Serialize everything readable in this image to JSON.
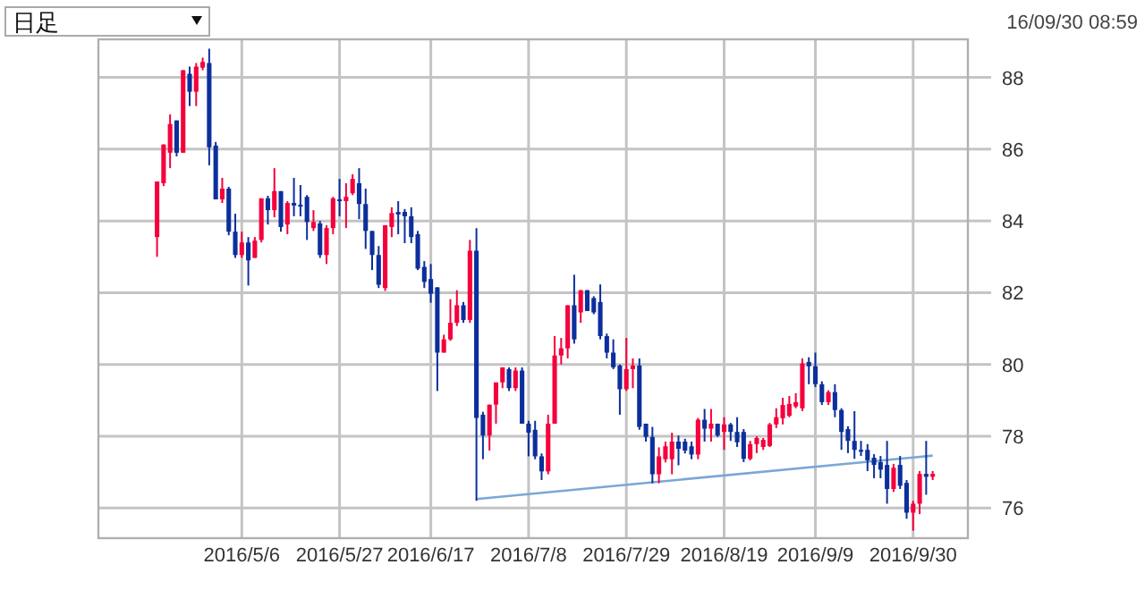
{
  "chart_data": {
    "type": "candlestick",
    "categories": [
      null,
      null,
      null,
      null,
      null,
      null,
      null,
      null,
      null,
      null,
      null,
      null,
      null,
      "2016/5/6",
      null,
      null,
      null,
      null,
      null,
      null,
      null,
      null,
      null,
      null,
      null,
      null,
      null,
      null,
      "2016/5/27",
      null,
      null,
      null,
      null,
      null,
      null,
      null,
      null,
      null,
      null,
      null,
      null,
      null,
      "2016/6/17",
      null,
      null,
      null,
      null,
      null,
      null,
      null,
      null,
      null,
      null,
      null,
      null,
      null,
      null,
      "2016/7/8",
      null,
      null,
      null,
      null,
      null,
      null,
      null,
      null,
      null,
      null,
      null,
      null,
      null,
      null,
      "2016/7/29",
      null,
      null,
      null,
      null,
      null,
      null,
      null,
      null,
      null,
      null,
      null,
      null,
      null,
      null,
      "2016/8/19",
      null,
      null,
      null,
      null,
      null,
      null,
      null,
      null,
      null,
      null,
      null,
      null,
      null,
      "2016/9/9",
      null,
      null,
      null,
      null,
      null,
      null,
      null,
      null,
      null,
      null,
      null,
      null,
      null,
      null,
      "2016/9/30",
      null,
      null,
      null
    ],
    "ohlc": [
      [
        83.55,
        85.1,
        83.0,
        85.1
      ],
      [
        85.05,
        86.13,
        84.97,
        86.13
      ],
      [
        85.9,
        86.97,
        85.47,
        86.7
      ],
      [
        86.8,
        86.8,
        85.8,
        85.9
      ],
      [
        85.9,
        88.2,
        85.9,
        88.2
      ],
      [
        88.1,
        88.3,
        87.2,
        87.6
      ],
      [
        87.6,
        88.4,
        87.2,
        88.3
      ],
      [
        88.27,
        88.55,
        88.2,
        88.43
      ],
      [
        88.4,
        88.8,
        85.55,
        86.05
      ],
      [
        86.1,
        86.2,
        84.6,
        84.6
      ],
      [
        84.6,
        85.2,
        84.5,
        84.9
      ],
      [
        84.9,
        84.95,
        83.6,
        83.7
      ],
      [
        83.7,
        84.2,
        82.97,
        83.05
      ],
      [
        83.05,
        83.7,
        82.97,
        83.4
      ],
      [
        83.4,
        83.55,
        82.2,
        82.9
      ],
      [
        82.97,
        83.55,
        82.97,
        83.45
      ],
      [
        83.47,
        84.63,
        83.4,
        84.63
      ],
      [
        84.63,
        84.7,
        83.9,
        84.3
      ],
      [
        84.3,
        85.47,
        84.1,
        84.83
      ],
      [
        84.83,
        84.83,
        83.7,
        83.83
      ],
      [
        83.9,
        84.55,
        83.63,
        84.5
      ],
      [
        84.5,
        85.2,
        84.13,
        84.43
      ],
      [
        84.45,
        85.0,
        84.13,
        84.4
      ],
      [
        84.67,
        84.72,
        83.47,
        83.97
      ],
      [
        83.8,
        84.3,
        83.72,
        83.97
      ],
      [
        83.93,
        84.0,
        82.97,
        83.05
      ],
      [
        83.05,
        83.88,
        82.8,
        83.8
      ],
      [
        83.8,
        84.67,
        83.63,
        84.63
      ],
      [
        84.6,
        85.17,
        84.13,
        84.55
      ],
      [
        84.55,
        85.05,
        83.8,
        84.67
      ],
      [
        84.77,
        85.3,
        84.72,
        85.17
      ],
      [
        85.05,
        85.47,
        84.05,
        84.47
      ],
      [
        84.47,
        84.9,
        83.22,
        83.72
      ],
      [
        83.72,
        83.72,
        82.63,
        83.05
      ],
      [
        83.05,
        83.3,
        82.13,
        82.22
      ],
      [
        82.13,
        83.88,
        82.05,
        83.88
      ],
      [
        83.83,
        84.38,
        83.55,
        84.22
      ],
      [
        84.25,
        84.55,
        83.63,
        84.18
      ],
      [
        84.25,
        84.33,
        83.38,
        84.13
      ],
      [
        84.13,
        84.38,
        83.38,
        83.55
      ],
      [
        83.63,
        83.72,
        82.63,
        82.67
      ],
      [
        82.72,
        82.88,
        82.13,
        82.3
      ],
      [
        82.38,
        82.8,
        81.72,
        81.97
      ],
      [
        82.15,
        82.15,
        79.26,
        80.33
      ],
      [
        80.33,
        80.83,
        80.33,
        80.7
      ],
      [
        80.7,
        81.82,
        80.66,
        81.16
      ],
      [
        81.16,
        82.07,
        81.07,
        81.65
      ],
      [
        81.65,
        81.74,
        81.16,
        81.24
      ],
      [
        81.24,
        83.47,
        81.16,
        83.17
      ],
      [
        83.17,
        83.8,
        76.2,
        78.51
      ],
      [
        78.6,
        78.68,
        77.36,
        78.02
      ],
      [
        78.02,
        78.88,
        77.6,
        78.88
      ],
      [
        78.88,
        79.5,
        78.35,
        79.5
      ],
      [
        79.5,
        79.92,
        79.34,
        79.92
      ],
      [
        79.87,
        79.92,
        79.26,
        79.34
      ],
      [
        79.34,
        79.92,
        79.26,
        79.83
      ],
      [
        79.83,
        79.92,
        78.35,
        78.35
      ],
      [
        78.35,
        78.43,
        77.44,
        78.1
      ],
      [
        78.18,
        78.43,
        77.36,
        77.44
      ],
      [
        77.44,
        77.52,
        76.78,
        77.02
      ],
      [
        77.02,
        78.6,
        76.94,
        78.35
      ],
      [
        78.35,
        80.79,
        78.35,
        80.25
      ],
      [
        80.25,
        80.74,
        80.0,
        80.45
      ],
      [
        80.45,
        81.65,
        80.17,
        81.65
      ],
      [
        81.65,
        82.5,
        80.58,
        80.7
      ],
      [
        81.45,
        82.07,
        81.16,
        82.07
      ],
      [
        82.07,
        82.07,
        81.49,
        81.49
      ],
      [
        81.85,
        81.9,
        81.4,
        81.45
      ],
      [
        81.74,
        82.23,
        80.7,
        80.79
      ],
      [
        80.79,
        80.86,
        80.17,
        80.33
      ],
      [
        80.33,
        80.7,
        79.87,
        79.92
      ],
      [
        79.97,
        80.0,
        78.6,
        79.31
      ],
      [
        79.31,
        80.74,
        79.26,
        79.87
      ],
      [
        79.87,
        80.17,
        79.34,
        79.97
      ],
      [
        79.97,
        80.17,
        78.18,
        78.26
      ],
      [
        78.35,
        78.35,
        77.85,
        77.98
      ],
      [
        77.98,
        78.26,
        76.69,
        76.94
      ],
      [
        76.94,
        77.69,
        76.69,
        77.44
      ],
      [
        77.36,
        77.85,
        77.27,
        77.72
      ],
      [
        77.36,
        78.1,
        76.94,
        77.85
      ],
      [
        77.85,
        78.02,
        77.19,
        77.65
      ],
      [
        77.85,
        77.93,
        77.52,
        77.6
      ],
      [
        77.72,
        77.85,
        77.36,
        77.49
      ],
      [
        77.49,
        78.51,
        77.36,
        78.46
      ],
      [
        78.46,
        78.76,
        77.85,
        78.21
      ],
      [
        78.21,
        78.76,
        77.85,
        78.35
      ],
      [
        78.35,
        78.35,
        77.98,
        78.02
      ],
      [
        78.12,
        78.53,
        77.62,
        78.33
      ],
      [
        78.33,
        78.37,
        77.87,
        78.12
      ],
      [
        78.12,
        78.53,
        77.7,
        77.83
      ],
      [
        78.12,
        78.2,
        77.28,
        77.37
      ],
      [
        77.37,
        77.87,
        77.33,
        77.78
      ],
      [
        77.78,
        78.0,
        77.53,
        77.95
      ],
      [
        77.7,
        77.95,
        77.62,
        77.9
      ],
      [
        77.73,
        78.37,
        77.7,
        78.33
      ],
      [
        78.33,
        78.78,
        78.23,
        78.53
      ],
      [
        78.5,
        79.07,
        78.33,
        78.87
      ],
      [
        78.57,
        79.12,
        78.53,
        78.9
      ],
      [
        78.83,
        79.2,
        78.78,
        78.95
      ],
      [
        78.78,
        80.17,
        78.7,
        80.03
      ],
      [
        80.07,
        80.2,
        79.45,
        79.95
      ],
      [
        79.95,
        80.33,
        79.37,
        79.45
      ],
      [
        79.45,
        79.53,
        78.87,
        78.95
      ],
      [
        78.95,
        79.28,
        78.87,
        79.23
      ],
      [
        79.23,
        79.45,
        78.53,
        78.73
      ],
      [
        78.73,
        78.78,
        77.62,
        78.12
      ],
      [
        78.2,
        78.28,
        77.53,
        77.87
      ],
      [
        77.87,
        78.7,
        77.37,
        77.62
      ],
      [
        77.62,
        77.87,
        77.45,
        77.57
      ],
      [
        77.62,
        77.78,
        77.03,
        77.33
      ],
      [
        77.4,
        77.5,
        76.83,
        77.2
      ],
      [
        77.28,
        77.45,
        76.83,
        77.07
      ],
      [
        77.2,
        77.87,
        76.12,
        76.53
      ],
      [
        76.53,
        77.23,
        76.45,
        77.12
      ],
      [
        77.2,
        77.45,
        76.53,
        76.62
      ],
      [
        76.7,
        76.78,
        75.7,
        75.87
      ],
      [
        75.87,
        76.2,
        75.37,
        76.12
      ],
      [
        76.12,
        77.03,
        75.83,
        76.95
      ],
      [
        76.95,
        77.87,
        76.37,
        76.87
      ],
      [
        76.87,
        77.03,
        76.78,
        76.95
      ]
    ],
    "colors": [
      "#f5003c",
      "#f5003c",
      "#f5003c",
      "#0c2f9c",
      "#f5003c",
      "#0c2f9c",
      "#f5003c",
      "#f5003c",
      "#0c2f9c",
      "#0c2f9c",
      "#f5003c",
      "#0c2f9c",
      "#0c2f9c",
      "#f5003c",
      "#0c2f9c",
      "#f5003c",
      "#f5003c",
      "#0c2f9c",
      "#f5003c",
      "#0c2f9c",
      "#f5003c",
      "#0c2f9c",
      "#0c2f9c",
      "#0c2f9c",
      "#f5003c",
      "#0c2f9c",
      "#f5003c",
      "#f5003c",
      "#0c2f9c",
      "#f5003c",
      "#f5003c",
      "#0c2f9c",
      "#0c2f9c",
      "#0c2f9c",
      "#0c2f9c",
      "#f5003c",
      "#f5003c",
      "#0c2f9c",
      "#0c2f9c",
      "#0c2f9c",
      "#0c2f9c",
      "#0c2f9c",
      "#0c2f9c",
      "#0c2f9c",
      "#f5003c",
      "#f5003c",
      "#f5003c",
      "#0c2f9c",
      "#f5003c",
      "#0c2f9c",
      "#0c2f9c",
      "#f5003c",
      "#f5003c",
      "#f5003c",
      "#0c2f9c",
      "#f5003c",
      "#0c2f9c",
      "#0c2f9c",
      "#0c2f9c",
      "#0c2f9c",
      "#f5003c",
      "#f5003c",
      "#f5003c",
      "#f5003c",
      "#0c2f9c",
      "#f5003c",
      "#0c2f9c",
      "#0c2f9c",
      "#0c2f9c",
      "#0c2f9c",
      "#0c2f9c",
      "#0c2f9c",
      "#f5003c",
      "#f5003c",
      "#0c2f9c",
      "#0c2f9c",
      "#0c2f9c",
      "#f5003c",
      "#f5003c",
      "#f5003c",
      "#0c2f9c",
      "#0c2f9c",
      "#0c2f9c",
      "#f5003c",
      "#0c2f9c",
      "#f5003c",
      "#0c2f9c",
      "#f5003c",
      "#0c2f9c",
      "#0c2f9c",
      "#0c2f9c",
      "#f5003c",
      "#f5003c",
      "#f5003c",
      "#f5003c",
      "#f5003c",
      "#f5003c",
      "#f5003c",
      "#f5003c",
      "#f5003c",
      "#0c2f9c",
      "#0c2f9c",
      "#0c2f9c",
      "#f5003c",
      "#0c2f9c",
      "#0c2f9c",
      "#0c2f9c",
      "#0c2f9c",
      "#0c2f9c",
      "#0c2f9c",
      "#0c2f9c",
      "#0c2f9c",
      "#0c2f9c",
      "#f5003c",
      "#0c2f9c",
      "#0c2f9c",
      "#f5003c",
      "#f5003c",
      "#0c2f9c",
      "#f5003c"
    ],
    "series": [
      {
        "type": "line",
        "color": "#7ba7d6",
        "values": [
          null,
          null,
          null,
          null,
          null,
          null,
          null,
          null,
          null,
          null,
          null,
          null,
          null,
          null,
          null,
          null,
          null,
          null,
          null,
          null,
          null,
          null,
          null,
          null,
          null,
          null,
          null,
          null,
          null,
          null,
          null,
          null,
          null,
          null,
          null,
          null,
          null,
          null,
          null,
          null,
          null,
          null,
          null,
          null,
          null,
          null,
          null,
          null,
          null,
          76.25,
          null,
          null,
          null,
          null,
          null,
          null,
          null,
          null,
          null,
          null,
          null,
          null,
          null,
          null,
          null,
          null,
          null,
          null,
          null,
          null,
          null,
          null,
          null,
          null,
          null,
          null,
          null,
          null,
          null,
          null,
          null,
          null,
          null,
          null,
          null,
          null,
          null,
          null,
          null,
          null,
          null,
          null,
          null,
          null,
          null,
          null,
          null,
          null,
          null,
          null,
          null,
          null,
          null,
          null,
          null,
          null,
          null,
          null,
          null,
          null,
          null,
          null,
          null,
          null,
          null,
          null,
          null,
          null,
          null,
          77.46
        ]
      }
    ],
    "ylim": [
      75.16,
      89.06
    ],
    "yticks": [
      76,
      78,
      80,
      82,
      84,
      86,
      88
    ],
    "grid": true,
    "annotations": [
      "日足",
      "16/09/30 08:59"
    ]
  }
}
